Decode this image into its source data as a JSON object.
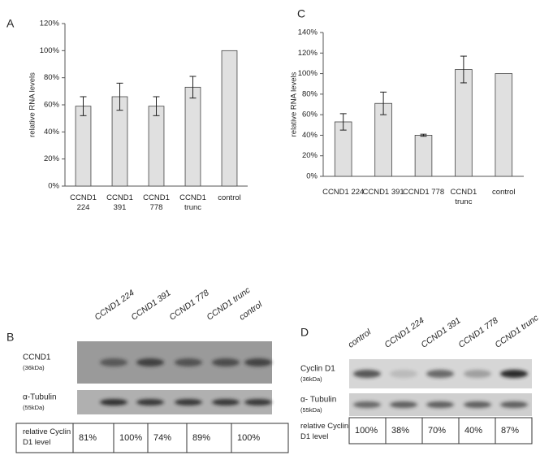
{
  "chart_data": [
    {
      "type": "bar",
      "panel": "A",
      "ylabel": "relative RNA levels",
      "categories": [
        "CCND1 224",
        "CCND1 391",
        "CCND1 778",
        "CCND1 trunc",
        "control"
      ],
      "values": [
        59,
        66,
        59,
        73,
        100
      ],
      "errors": [
        7,
        10,
        7,
        8,
        0
      ],
      "color": "#e0e0e0",
      "ylim": [
        0,
        120
      ],
      "yticks": [
        {
          "value": 0,
          "label": "0%"
        },
        {
          "value": 20,
          "label": "20%"
        },
        {
          "value": 40,
          "label": "40%"
        },
        {
          "value": 60,
          "label": "60%"
        },
        {
          "value": 80,
          "label": "80%"
        },
        {
          "value": 100,
          "label": "100%"
        },
        {
          "value": 120,
          "label": "120%"
        }
      ]
    },
    {
      "type": "bar",
      "panel": "C",
      "ylabel": "relative RNA levels",
      "categories": [
        "CCND1 224",
        "CCND1 391",
        "CCND1 778",
        "CCND1 trunc",
        "control"
      ],
      "values": [
        53,
        71,
        40,
        104,
        100
      ],
      "errors": [
        8,
        11,
        1,
        13,
        0
      ],
      "color": "#e0e0e0",
      "ylim": [
        0,
        140
      ],
      "yticks": [
        {
          "value": 0,
          "label": "0%"
        },
        {
          "value": 20,
          "label": "20%"
        },
        {
          "value": 40,
          "label": "40%"
        },
        {
          "value": 60,
          "label": "60%"
        },
        {
          "value": 80,
          "label": "80%"
        },
        {
          "value": 100,
          "label": "100%"
        },
        {
          "value": 120,
          "label": "120%"
        },
        {
          "value": 140,
          "label": "140%"
        }
      ]
    }
  ],
  "blots": [
    {
      "panel": "B",
      "lanes": [
        "CCND1 224",
        "CCND1 391",
        "CCND1 778",
        "CCND1 trunc",
        "control"
      ],
      "rows": [
        {
          "name": "CCND1",
          "size": "(36kDa)"
        },
        {
          "name": "α-Tubulin",
          "size": "(55kDa)"
        }
      ],
      "quant_label": "relative Cyclin D1 level",
      "quant": [
        "81%",
        "100%",
        "74%",
        "89%",
        "100%"
      ]
    },
    {
      "panel": "D",
      "lanes": [
        "control",
        "CCND1 224",
        "CCND1 391",
        "CCND1 778",
        "CCND1 trunc"
      ],
      "rows": [
        {
          "name": "Cyclin D1",
          "size": "(36kDa)"
        },
        {
          "name": "α- Tubulin",
          "size": "(55kDa)"
        }
      ],
      "quant_label": "relative Cyclin D1 level",
      "quant": [
        "100%",
        "38%",
        "70%",
        "40%",
        "87%"
      ]
    }
  ]
}
